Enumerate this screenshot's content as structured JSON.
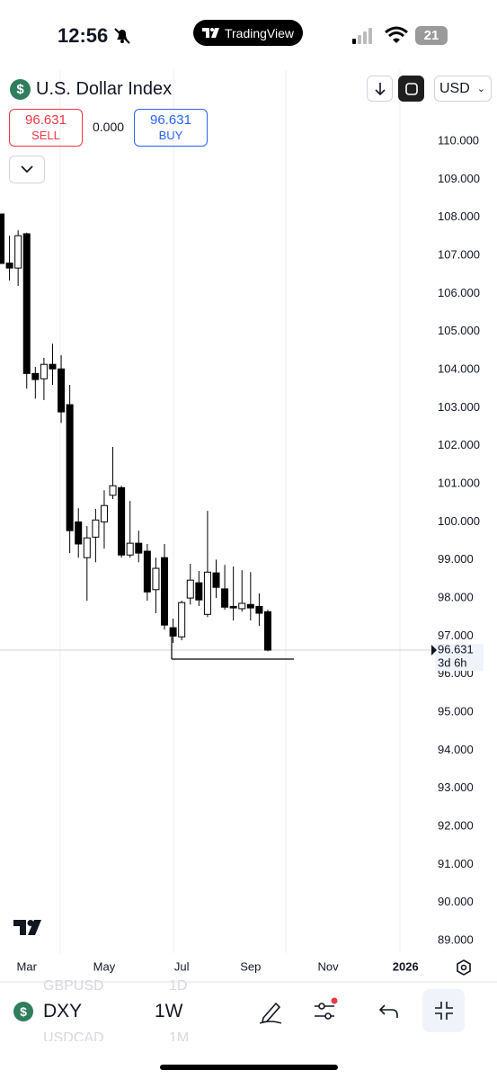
{
  "status_bar": {
    "time": "12:56",
    "app": "TradingView",
    "battery": "21"
  },
  "header": {
    "symbol_name": "U.S. Dollar Index",
    "currency": "USD",
    "sell_price": "96.631",
    "sell_label": "SELL",
    "spread": "0.000",
    "buy_price": "96.631",
    "buy_label": "BUY"
  },
  "chart_data": {
    "type": "candlestick",
    "categories": [
      null,
      null,
      null,
      "Mar",
      null,
      null,
      null,
      null,
      null,
      null,
      null,
      null,
      "May",
      null,
      null,
      null,
      null,
      null,
      null,
      null,
      null,
      "Jul",
      null,
      null,
      null,
      null,
      null,
      null,
      null,
      "Sep",
      null,
      null,
      null,
      null,
      null,
      null,
      null,
      null,
      "Nov",
      null,
      null,
      null,
      null,
      null,
      null,
      null,
      null,
      "2026"
    ],
    "open": [
      108.09,
      106.8,
      106.67,
      107.57,
      103.9,
      103.76,
      104.14,
      104.02,
      103.08,
      100.0,
      99.06,
      99.6,
      100.0,
      100.7,
      100.9,
      99.13,
      99.44,
      99.23,
      98.22,
      99.06,
      97.22,
      96.98,
      98.0,
      98.4,
      97.57,
      98.66,
      98.24,
      97.78,
      97.72,
      97.83,
      97.78,
      97.64,
      null,
      null,
      null,
      null,
      null,
      null,
      null,
      null,
      null,
      null,
      null,
      null,
      null,
      null,
      null,
      null
    ],
    "high": [
      108.09,
      107.52,
      107.66,
      107.6,
      104.07,
      104.31,
      104.68,
      104.38,
      103.6,
      100.36,
      99.89,
      100.34,
      100.83,
      101.97,
      100.95,
      100.55,
      99.77,
      99.42,
      99.06,
      99.42,
      97.46,
      97.93,
      98.9,
      98.71,
      100.29,
      99.01,
      98.87,
      98.83,
      98.73,
      98.68,
      98.12,
      97.69,
      null,
      null,
      null,
      null,
      null,
      null,
      null,
      null,
      null,
      null,
      null,
      null,
      null,
      null,
      null,
      null
    ],
    "low": [
      106.79,
      106.34,
      106.2,
      103.5,
      103.24,
      103.2,
      103.6,
      102.6,
      99.18,
      99.06,
      97.93,
      98.94,
      99.3,
      100.6,
      99.06,
      99.06,
      98.94,
      97.93,
      97.6,
      97.17,
      96.82,
      96.89,
      97.83,
      97.79,
      97.5,
      98.0,
      97.69,
      97.41,
      97.64,
      97.41,
      97.27,
      96.6,
      null,
      null,
      null,
      null,
      null,
      null,
      null,
      null,
      null,
      null,
      null,
      null,
      null,
      null,
      null,
      null
    ],
    "close": [
      106.79,
      106.67,
      107.52,
      103.9,
      103.74,
      104.14,
      104.02,
      102.89,
      99.77,
      99.42,
      99.58,
      100.05,
      100.43,
      100.95,
      99.13,
      99.44,
      99.18,
      98.16,
      98.78,
      97.29,
      97.0,
      97.88,
      98.47,
      97.95,
      98.68,
      98.28,
      97.76,
      97.74,
      97.86,
      97.74,
      97.6,
      96.631,
      null,
      null,
      null,
      null,
      null,
      null,
      null,
      null,
      null,
      null,
      null,
      null,
      null,
      null,
      null,
      null
    ],
    "up_color": "#ffffff",
    "down_color": "#000000",
    "ylim": [
      88.67,
      111.87
    ],
    "yticks": [
      {
        "value": 110,
        "label": "110.000"
      },
      {
        "value": 109,
        "label": "109.000"
      },
      {
        "value": 108,
        "label": "108.000"
      },
      {
        "value": 107,
        "label": "107.000"
      },
      {
        "value": 106,
        "label": "106.000"
      },
      {
        "value": 105,
        "label": "105.000"
      },
      {
        "value": 104,
        "label": "104.000"
      },
      {
        "value": 103,
        "label": "103.000"
      },
      {
        "value": 102,
        "label": "102.000"
      },
      {
        "value": 101,
        "label": "101.000"
      },
      {
        "value": 100,
        "label": "100.000"
      },
      {
        "value": 99,
        "label": "99.000"
      },
      {
        "value": 98,
        "label": "98.000"
      },
      {
        "value": 97,
        "label": "97.000"
      },
      {
        "value": 96,
        "label": "96.000"
      },
      {
        "value": 95,
        "label": "95.000"
      },
      {
        "value": 94,
        "label": "94.000"
      },
      {
        "value": 93,
        "label": "93.000"
      },
      {
        "value": 92,
        "label": "92.000"
      },
      {
        "value": 91,
        "label": "91.000"
      },
      {
        "value": 90,
        "label": "90.000"
      },
      {
        "value": 89,
        "label": "89.000"
      }
    ],
    "last_price": 96.631,
    "countdown": "3d 6h"
  },
  "toolbar": {
    "symbol": "DXY",
    "interval": "1W",
    "prev_symbol": "GBPUSD",
    "prev_interval": "1D",
    "next_symbol": "USDCAD",
    "next_interval": "1M"
  }
}
